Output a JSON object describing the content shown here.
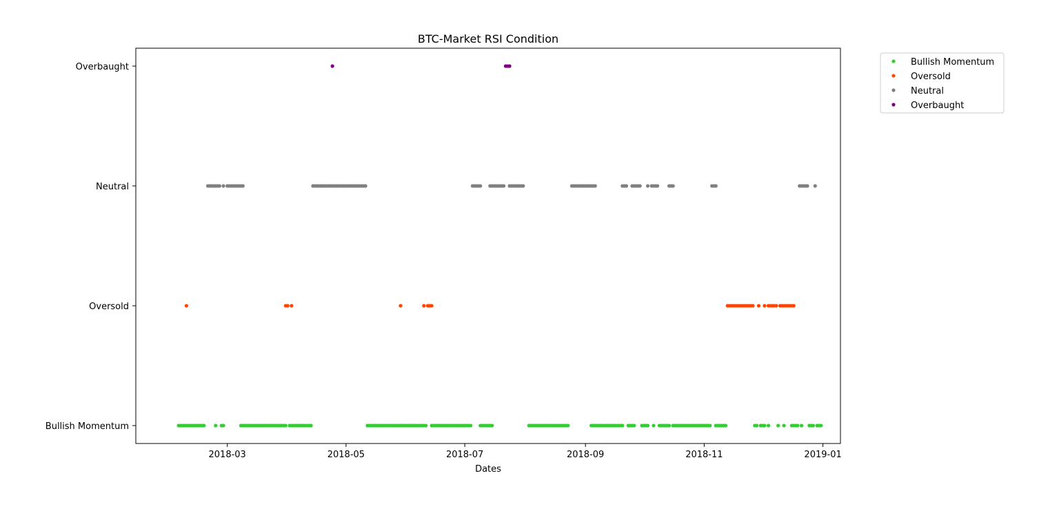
{
  "chart_data": {
    "type": "scatter",
    "title": "BTC-Market RSI Condition",
    "xlabel": "Dates",
    "ylabel": "",
    "x_axis_type": "date",
    "xlim": [
      "2018-01-13",
      "2019-01-10"
    ],
    "x_ticks": [
      "2018-03",
      "2018-05",
      "2018-07",
      "2018-09",
      "2018-11",
      "2019-01"
    ],
    "y_categories": [
      "Bullish Momentum",
      "Oversold",
      "Neutral",
      "Overbaught"
    ],
    "legend_position": "outside-top-right",
    "grid": false,
    "series": [
      {
        "name": "Bullish Momentum",
        "color": "#32cd32",
        "ranges": [
          [
            "2018-02-04",
            "2018-02-17"
          ],
          [
            "2018-02-23",
            "2018-02-23"
          ],
          [
            "2018-02-26",
            "2018-02-27"
          ],
          [
            "2018-03-08",
            "2018-03-31"
          ],
          [
            "2018-04-02",
            "2018-04-13"
          ],
          [
            "2018-05-12",
            "2018-06-11"
          ],
          [
            "2018-06-14",
            "2018-07-04"
          ],
          [
            "2018-07-09",
            "2018-07-15"
          ],
          [
            "2018-08-03",
            "2018-08-23"
          ],
          [
            "2018-09-04",
            "2018-09-20"
          ],
          [
            "2018-09-23",
            "2018-09-26"
          ],
          [
            "2018-09-30",
            "2018-10-03"
          ],
          [
            "2018-10-06",
            "2018-10-06"
          ],
          [
            "2018-10-09",
            "2018-10-14"
          ],
          [
            "2018-10-16",
            "2018-11-04"
          ],
          [
            "2018-11-07",
            "2018-11-12"
          ],
          [
            "2018-11-27",
            "2018-11-28"
          ],
          [
            "2018-11-30",
            "2018-12-02"
          ],
          [
            "2018-12-04",
            "2018-12-04"
          ],
          [
            "2018-12-09",
            "2018-12-09"
          ],
          [
            "2018-12-12",
            "2018-12-12"
          ],
          [
            "2018-12-16",
            "2018-12-19"
          ],
          [
            "2018-12-21",
            "2018-12-21"
          ],
          [
            "2018-12-25",
            "2018-12-27"
          ],
          [
            "2018-12-29",
            "2018-12-31"
          ]
        ]
      },
      {
        "name": "Oversold",
        "color": "#ff4500",
        "ranges": [
          [
            "2018-02-08",
            "2018-02-08"
          ],
          [
            "2018-03-31",
            "2018-04-01"
          ],
          [
            "2018-04-03",
            "2018-04-03"
          ],
          [
            "2018-05-29",
            "2018-05-29"
          ],
          [
            "2018-06-10",
            "2018-06-10"
          ],
          [
            "2018-06-12",
            "2018-06-14"
          ],
          [
            "2018-11-13",
            "2018-11-26"
          ],
          [
            "2018-11-29",
            "2018-11-29"
          ],
          [
            "2018-12-02",
            "2018-12-02"
          ],
          [
            "2018-12-04",
            "2018-12-08"
          ],
          [
            "2018-12-10",
            "2018-12-12"
          ],
          [
            "2018-12-13",
            "2018-12-17"
          ]
        ]
      },
      {
        "name": "Neutral",
        "color": "#808080",
        "ranges": [
          [
            "2018-02-19",
            "2018-02-25"
          ],
          [
            "2018-02-27",
            "2018-02-27"
          ],
          [
            "2018-03-01",
            "2018-03-09"
          ],
          [
            "2018-04-14",
            "2018-04-25"
          ],
          [
            "2018-04-26",
            "2018-05-11"
          ],
          [
            "2018-07-05",
            "2018-07-09"
          ],
          [
            "2018-07-14",
            "2018-07-21"
          ],
          [
            "2018-07-24",
            "2018-07-31"
          ],
          [
            "2018-08-25",
            "2018-09-06"
          ],
          [
            "2018-09-20",
            "2018-09-22"
          ],
          [
            "2018-09-25",
            "2018-09-29"
          ],
          [
            "2018-10-03",
            "2018-10-03"
          ],
          [
            "2018-10-05",
            "2018-10-08"
          ],
          [
            "2018-10-14",
            "2018-10-16"
          ],
          [
            "2018-11-05",
            "2018-11-07"
          ],
          [
            "2018-12-20",
            "2018-12-24"
          ],
          [
            "2018-12-28",
            "2018-12-28"
          ]
        ]
      },
      {
        "name": "Overbaught",
        "color": "#800080",
        "ranges": [
          [
            "2018-04-24",
            "2018-04-24"
          ],
          [
            "2018-07-22",
            "2018-07-24"
          ]
        ]
      }
    ]
  }
}
